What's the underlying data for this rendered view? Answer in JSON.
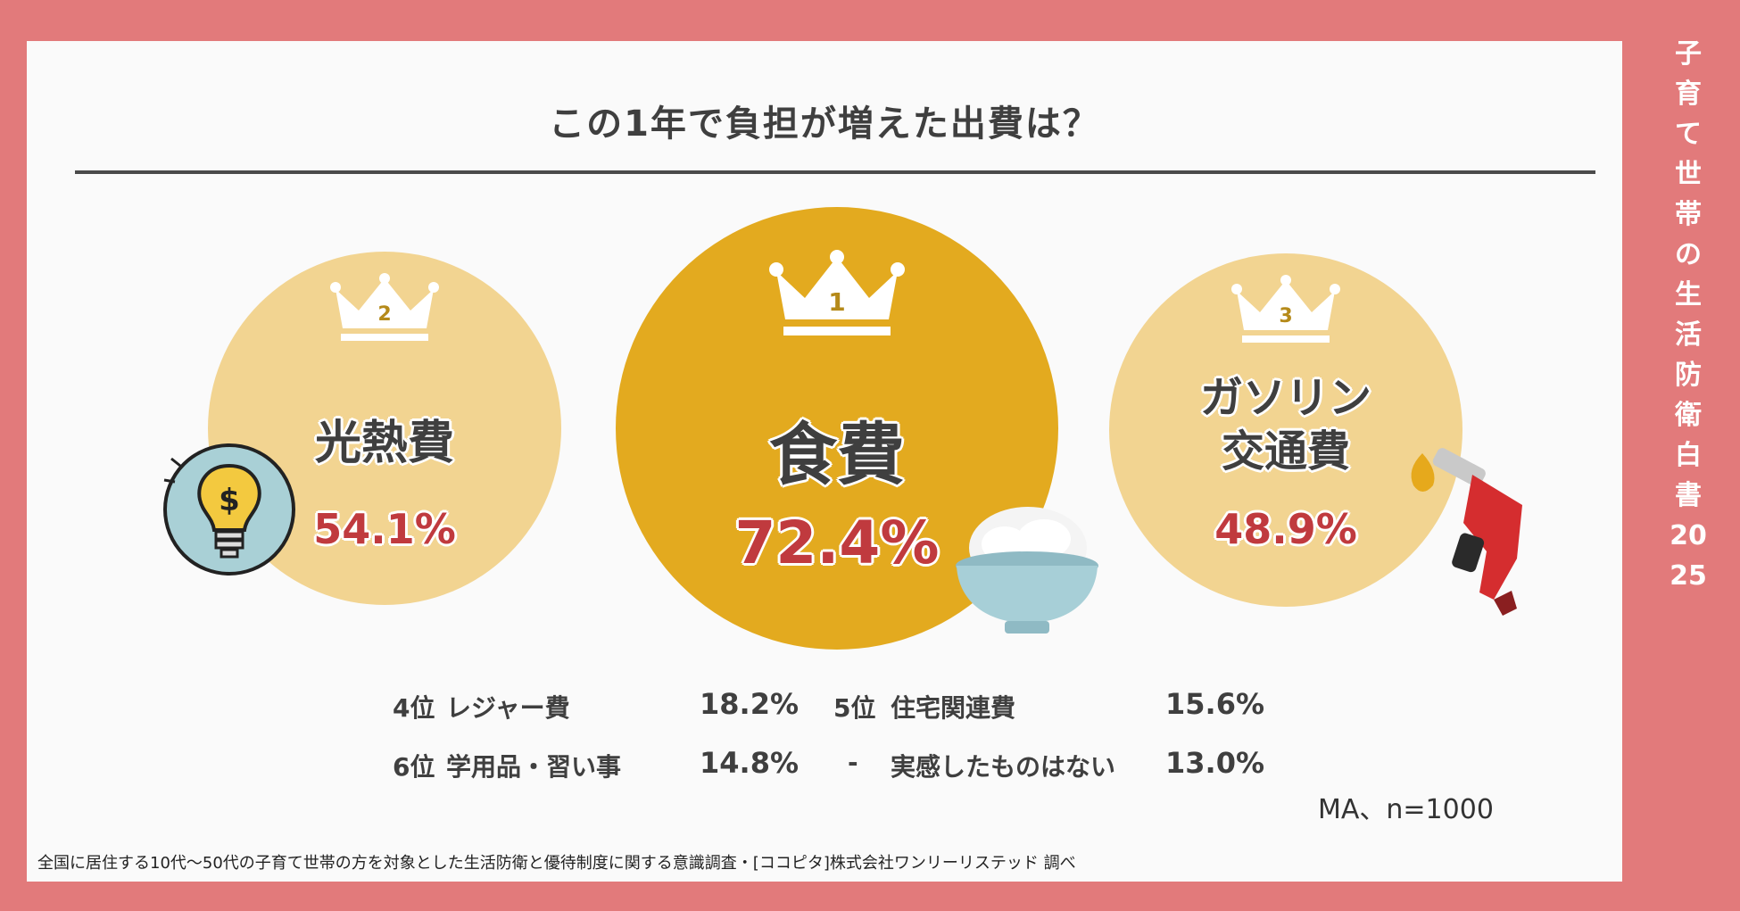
{
  "title": "この1年で負担が増えた出費は？",
  "side_title": "子育て世帯の生活防衛白書2025",
  "colors": {
    "background": "#e27a7b",
    "panel": "#fafafa",
    "bubble_light": "#f2d491",
    "bubble_main": "#e3aa1f",
    "percent": "#c03a3e"
  },
  "chart_data": {
    "type": "bubble-ranking",
    "items": [
      {
        "rank": 1,
        "rank_label": "1",
        "label": "食費",
        "value": 72.4,
        "display": "72.4%",
        "icon": "rice-bowl-icon"
      },
      {
        "rank": 2,
        "rank_label": "2",
        "label": "光熱費",
        "value": 54.1,
        "display": "54.1%",
        "icon": "lightbulb-dollar-icon"
      },
      {
        "rank": 3,
        "rank_label": "3",
        "label": "ガソリン\n交通費",
        "value": 48.9,
        "display": "48.9%",
        "icon": "fuel-nozzle-icon"
      }
    ],
    "others": [
      {
        "rank": "4位",
        "label": "レジャー費",
        "value": 18.2,
        "display": "18.2%"
      },
      {
        "rank": "5位",
        "label": "住宅関連費",
        "value": 15.6,
        "display": "15.6%"
      },
      {
        "rank": "6位",
        "label": "学用品・習い事",
        "value": 14.8,
        "display": "14.8%"
      },
      {
        "rank": "-",
        "label": "実感したものはない",
        "value": 13.0,
        "display": "13.0%"
      }
    ],
    "note": "MA、n=1000"
  },
  "footer": "全国に居住する10代〜50代の子育て世帯の方を対象とした生活防衛と優待制度に関する意識調査・[ココピタ]株式会社ワンリーリステッド 調べ"
}
